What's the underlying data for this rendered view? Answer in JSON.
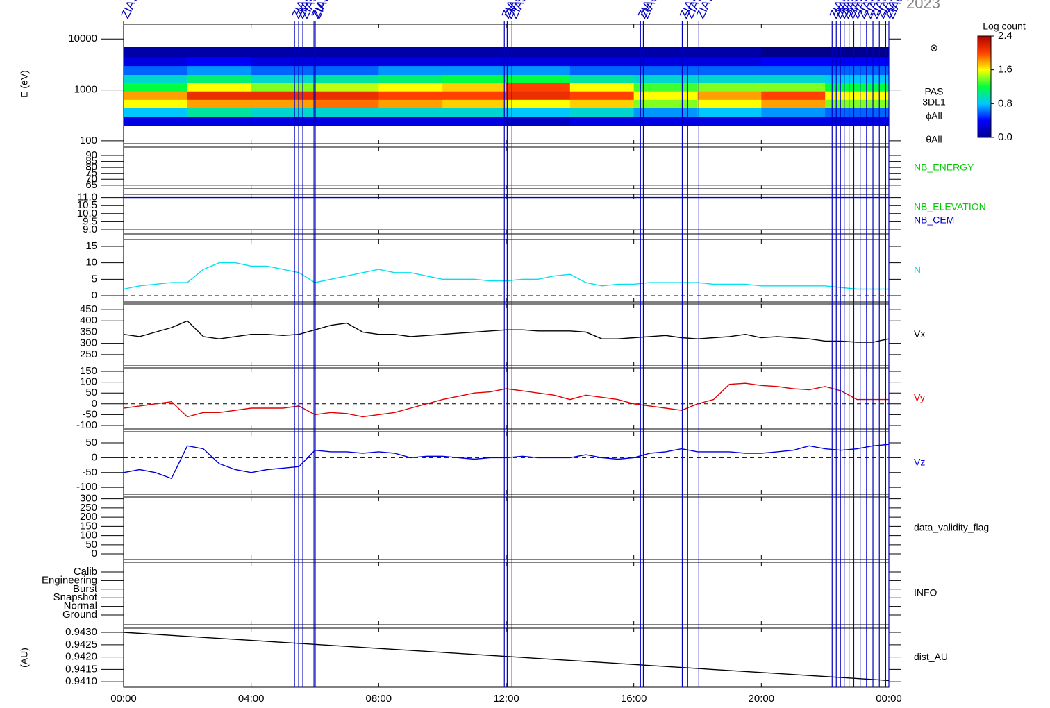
{
  "chart_data": [
    {
      "type": "heatmap",
      "title": "2023",
      "ylabel": "E (eV)",
      "ylog": true,
      "xlim": [
        0,
        24
      ],
      "ylim": [
        88,
        19500
      ],
      "yticks": [
        100,
        1000,
        10000
      ],
      "labels": [
        "⊗",
        "PAS",
        "3DL1",
        "ϕAll",
        "θAll"
      ],
      "x_bins": [
        0,
        2,
        4,
        6,
        8,
        10,
        12,
        14,
        16,
        18,
        20,
        22,
        24
      ],
      "y_bins": [
        200,
        300,
        450,
        650,
        950,
        1400,
        2000,
        3000,
        4500,
        7000
      ],
      "z": [
        [
          0.3,
          0.3,
          0.3,
          0.3,
          0.3,
          0.3,
          0.2,
          0.3,
          0.3,
          0.3,
          0.3,
          0.3
        ],
        [
          0.8,
          1.0,
          0.9,
          0.9,
          0.9,
          0.9,
          0.8,
          0.9,
          0.7,
          0.8,
          0.7,
          0.6
        ],
        [
          1.6,
          1.8,
          1.8,
          1.9,
          1.8,
          1.7,
          1.6,
          1.7,
          1.4,
          1.6,
          1.8,
          1.4
        ],
        [
          1.8,
          2.1,
          2.1,
          2.1,
          2.0,
          2.0,
          2.1,
          2.0,
          1.6,
          1.8,
          2.0,
          1.6
        ],
        [
          1.2,
          1.6,
          1.4,
          1.5,
          1.6,
          1.7,
          2.0,
          1.6,
          1.3,
          1.4,
          1.4,
          1.2
        ],
        [
          0.9,
          1.1,
          0.9,
          1.0,
          1.1,
          1.2,
          1.2,
          1.0,
          0.9,
          0.9,
          0.9,
          0.8
        ],
        [
          0.6,
          0.7,
          0.6,
          0.6,
          0.7,
          0.7,
          0.7,
          0.6,
          0.6,
          0.6,
          0.6,
          0.6
        ],
        [
          0.3,
          0.4,
          0.3,
          0.3,
          0.3,
          0.3,
          0.3,
          0.3,
          0.3,
          0.3,
          0.4,
          0.4
        ],
        [
          0.1,
          0.1,
          0.1,
          0.1,
          0.1,
          0.1,
          0.1,
          0.1,
          0.1,
          0.1,
          0.0,
          0.0
        ]
      ],
      "colorscale": [
        "#00008b",
        "#0000ff",
        "#00c8ff",
        "#00ff40",
        "#ffff00",
        "#ff4000",
        "#b00000"
      ],
      "colorbar": {
        "title": "Log count",
        "clim": [
          0,
          2.4
        ],
        "ticks": [
          {
            "value": 0,
            "label": "0.0"
          },
          0.8,
          1.6,
          2.4
        ]
      },
      "events": {
        "label": "ZIAS",
        "color": "#0000c0",
        "x": [
          0,
          5.36,
          5.49,
          5.62,
          5.97,
          6.01,
          11.94,
          12.03,
          12.18,
          16.21,
          16.3,
          17.52,
          17.69,
          18.04,
          22.22,
          22.35,
          22.48,
          22.6,
          22.75,
          22.9,
          23.1,
          23.3,
          23.5,
          23.7,
          23.9,
          24
        ]
      }
    },
    {
      "type": "line",
      "xlim": [
        0,
        24
      ],
      "ylim": [
        62,
        97
      ],
      "yticks": [
        65,
        70,
        75,
        80,
        85,
        90
      ],
      "series": [
        {
          "name": "NB_ENERGY",
          "color": "#00cc00",
          "x": [
            0,
            24
          ],
          "values": [
            65,
            65
          ]
        }
      ]
    },
    {
      "type": "line",
      "xlim": [
        0,
        24
      ],
      "ylim": [
        8.74,
        11.2
      ],
      "yticks": [
        {
          "value": 9,
          "label": "9.0"
        },
        9.5,
        {
          "value": 10,
          "label": "10.0"
        },
        10.5,
        {
          "value": 11,
          "label": "11.0"
        }
      ],
      "series": [
        {
          "name": "NB_ELEVATION",
          "color": "#00cc00",
          "x": [
            0,
            24
          ],
          "values": [
            9,
            9
          ]
        },
        {
          "name": "NB_CEM",
          "color": "#0000cc",
          "x": [
            0,
            24
          ],
          "values": [
            11,
            11
          ]
        }
      ]
    },
    {
      "type": "line",
      "xlim": [
        0,
        24
      ],
      "ylim": [
        -1.9,
        17.1
      ],
      "yticks": [
        0,
        5,
        10,
        15
      ],
      "zero_line": true,
      "series": [
        {
          "name": "N",
          "color": "#00e0f0",
          "x": [
            0,
            0.5,
            1,
            1.5,
            2,
            2.5,
            3,
            3.5,
            4,
            4.5,
            5,
            5.5,
            6,
            6.5,
            7,
            7.5,
            8,
            8.5,
            9,
            9.5,
            10,
            10.5,
            11,
            11.5,
            12,
            12.5,
            13,
            13.5,
            14,
            14.5,
            15,
            15.5,
            16,
            16.5,
            17,
            17.5,
            18,
            18.5,
            19,
            19.5,
            20,
            20.5,
            21,
            21.5,
            22,
            22.5,
            23,
            23.5,
            24
          ],
          "values": [
            2,
            3,
            3.5,
            4,
            4,
            8,
            10,
            10,
            9,
            9,
            8,
            7,
            4,
            5,
            6,
            7,
            8,
            7,
            7,
            6,
            5,
            5,
            5,
            4.5,
            4.5,
            5,
            5,
            6,
            6.5,
            4,
            3,
            3.5,
            3.5,
            4,
            4,
            4,
            4,
            3.5,
            3.5,
            3.5,
            3,
            3,
            3,
            3,
            3,
            2.5,
            2,
            2,
            2
          ]
        }
      ]
    },
    {
      "type": "line",
      "xlim": [
        0,
        24
      ],
      "ylim": [
        200,
        475
      ],
      "yticks": [
        250,
        300,
        350,
        400,
        450
      ],
      "series": [
        {
          "name": "Vx",
          "color": "#000000",
          "x": [
            0,
            0.5,
            1,
            1.5,
            2,
            2.5,
            3,
            3.5,
            4,
            4.5,
            5,
            5.5,
            6,
            6.5,
            7,
            7.5,
            8,
            8.5,
            9,
            9.5,
            10,
            10.5,
            11,
            11.5,
            12,
            12.5,
            13,
            13.5,
            14,
            14.5,
            15,
            15.5,
            16,
            16.5,
            17,
            17.5,
            18,
            18.5,
            19,
            19.5,
            20,
            20.5,
            21,
            21.5,
            22,
            22.5,
            23,
            23.5,
            24
          ],
          "values": [
            340,
            330,
            350,
            370,
            400,
            330,
            320,
            330,
            340,
            340,
            335,
            340,
            360,
            380,
            390,
            350,
            340,
            340,
            330,
            335,
            340,
            345,
            350,
            355,
            360,
            360,
            355,
            355,
            355,
            350,
            320,
            320,
            325,
            330,
            335,
            325,
            320,
            325,
            330,
            340,
            325,
            330,
            325,
            320,
            310,
            310,
            305,
            305,
            320
          ]
        }
      ]
    },
    {
      "type": "line",
      "xlim": [
        0,
        24
      ],
      "ylim": [
        -116,
        166
      ],
      "yticks": [
        -100,
        -50,
        0,
        50,
        100,
        150
      ],
      "zero_line": true,
      "series": [
        {
          "name": "Vy",
          "color": "#e00000",
          "x": [
            0,
            0.5,
            1,
            1.5,
            2,
            2.5,
            3,
            3.5,
            4,
            4.5,
            5,
            5.5,
            6,
            6.5,
            7,
            7.5,
            8,
            8.5,
            9,
            9.5,
            10,
            10.5,
            11,
            11.5,
            12,
            12.5,
            13,
            13.5,
            14,
            14.5,
            15,
            15.5,
            16,
            16.5,
            17,
            17.5,
            18,
            18.5,
            19,
            19.5,
            20,
            20.5,
            21,
            21.5,
            22,
            22.5,
            23,
            23.5,
            24
          ],
          "values": [
            -20,
            -10,
            0,
            10,
            -60,
            -40,
            -40,
            -30,
            -20,
            -20,
            -20,
            -10,
            -50,
            -40,
            -45,
            -60,
            -50,
            -40,
            -20,
            0,
            20,
            35,
            50,
            55,
            70,
            60,
            50,
            40,
            20,
            40,
            30,
            20,
            0,
            -10,
            -20,
            -30,
            0,
            20,
            90,
            95,
            85,
            80,
            70,
            65,
            80,
            60,
            20,
            20,
            20
          ]
        }
      ]
    },
    {
      "type": "line",
      "xlim": [
        0,
        24
      ],
      "ylim": [
        -123,
        87.5
      ],
      "yticks": [
        -100,
        -50,
        0,
        50
      ],
      "zero_line": true,
      "series": [
        {
          "name": "Vz",
          "color": "#0000dd",
          "x": [
            0,
            0.5,
            1,
            1.5,
            2,
            2.5,
            3,
            3.5,
            4,
            4.5,
            5,
            5.5,
            6,
            6.5,
            7,
            7.5,
            8,
            8.5,
            9,
            9.5,
            10,
            10.5,
            11,
            11.5,
            12,
            12.5,
            13,
            13.5,
            14,
            14.5,
            15,
            15.5,
            16,
            16.5,
            17,
            17.5,
            18,
            18.5,
            19,
            19.5,
            20,
            20.5,
            21,
            21.5,
            22,
            22.5,
            23,
            23.5,
            24
          ],
          "values": [
            -50,
            -40,
            -50,
            -70,
            40,
            30,
            -20,
            -40,
            -50,
            -40,
            -35,
            -30,
            25,
            20,
            20,
            15,
            20,
            15,
            0,
            5,
            5,
            0,
            -5,
            0,
            0,
            5,
            0,
            0,
            0,
            10,
            0,
            -5,
            0,
            15,
            20,
            30,
            20,
            20,
            20,
            15,
            15,
            20,
            25,
            40,
            30,
            25,
            30,
            40,
            45
          ]
        }
      ]
    },
    {
      "type": "line",
      "xlim": [
        0,
        24
      ],
      "ylim": [
        -30,
        310
      ],
      "yticks": [
        0,
        50,
        100,
        150,
        200,
        250,
        300
      ],
      "label": "data_validity_flag",
      "series": []
    },
    {
      "type": "line",
      "xlim": [
        0,
        24
      ],
      "ylim": [
        -1.13,
        6.13
      ],
      "yticks": [
        {
          "value": 0,
          "label": "Ground"
        },
        {
          "value": 1,
          "label": "Normal"
        },
        {
          "value": 2,
          "label": "Snapshot"
        },
        {
          "value": 3,
          "label": "Burst"
        },
        {
          "value": 4,
          "label": "Engineering"
        },
        {
          "value": 5,
          "label": "Calib"
        }
      ],
      "label": "INFO",
      "series": []
    },
    {
      "type": "line",
      "ylabel": "(AU)",
      "xlim": [
        0,
        24
      ],
      "ylim": [
        0.94078,
        0.94317
      ],
      "yticks": [
        {
          "value": 0.941,
          "label": "0.9410"
        },
        0.9415,
        {
          "value": 0.942,
          "label": "0.9420"
        },
        0.9425,
        {
          "value": 0.943,
          "label": "0.9430"
        }
      ],
      "xticks": [
        {
          "value": 0,
          "label": "00:00"
        },
        {
          "value": 4,
          "label": "04:00"
        },
        {
          "value": 8,
          "label": "08:00"
        },
        {
          "value": 12,
          "label": "12:00"
        },
        {
          "value": 16,
          "label": "16:00"
        },
        {
          "value": 20,
          "label": "20:00"
        },
        {
          "value": 24,
          "label": "00:00"
        }
      ],
      "series": [
        {
          "name": "dist_AU",
          "color": "#000000",
          "x": [
            0,
            24
          ],
          "values": [
            0.943,
            0.94105
          ]
        }
      ]
    }
  ]
}
